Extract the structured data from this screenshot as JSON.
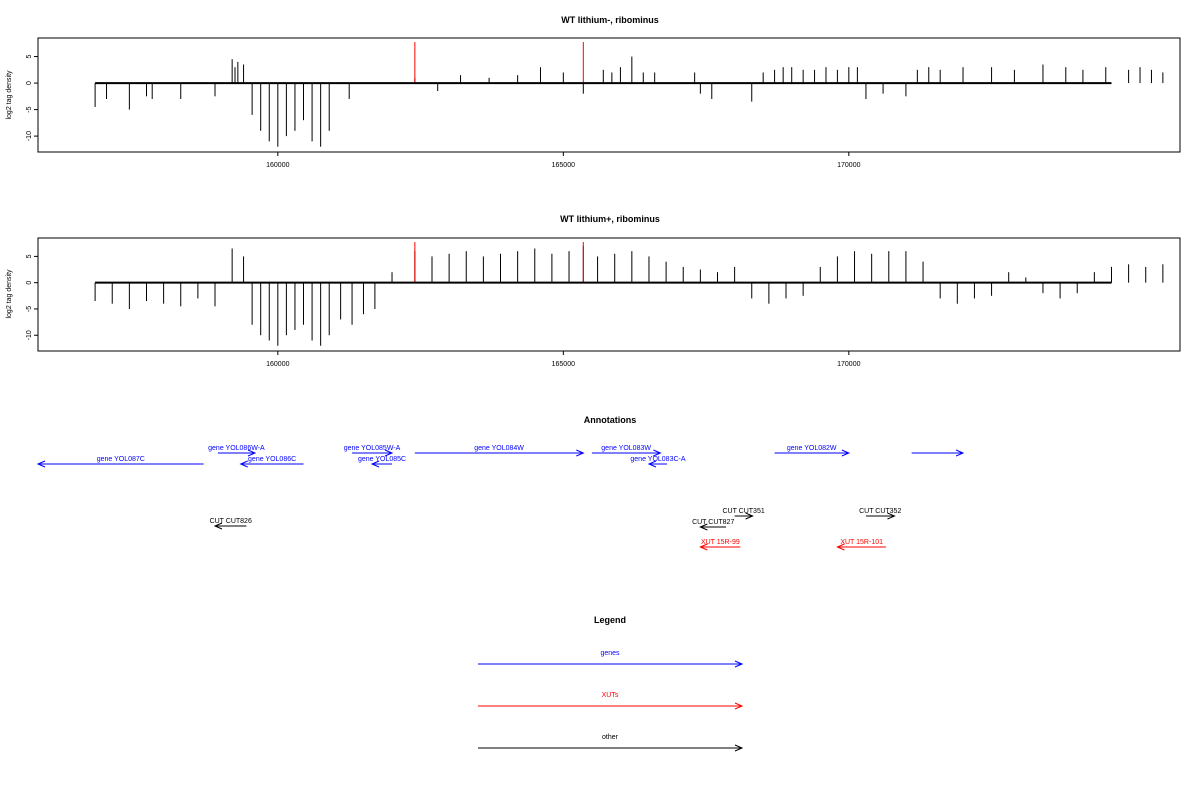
{
  "chart_data": [
    {
      "type": "bar",
      "title": "WT lithium-, ribominus",
      "xlabel": "",
      "ylabel": "log2 tag density",
      "xlim": [
        155800,
        175800
      ],
      "ylim": [
        -13,
        8.5
      ],
      "x_ticks": [
        160000,
        165000,
        170000
      ],
      "x_tick_labels": [
        "160000",
        "165000",
        "170000"
      ],
      "y_ticks": [
        -10,
        -5,
        0,
        5
      ],
      "y_tick_labels": [
        "-10",
        "-5",
        "0",
        "5"
      ],
      "highlights": [
        162400,
        165350
      ],
      "highlight_color": "#ff0000",
      "bar_color": "#000000",
      "x": [
        156800,
        157000,
        157400,
        157700,
        157800,
        158300,
        158900,
        159200,
        159250,
        159300,
        159400,
        159550,
        159700,
        159850,
        160000,
        160150,
        160300,
        160450,
        160600,
        160750,
        160900,
        161250,
        162400,
        162800,
        163200,
        163700,
        164200,
        164600,
        165000,
        165350,
        165700,
        165850,
        166000,
        166200,
        166400,
        166600,
        167300,
        167400,
        167600,
        168300,
        168500,
        168700,
        168850,
        169000,
        169200,
        169400,
        169600,
        169800,
        170000,
        170150,
        170300,
        170600,
        171000,
        171200,
        171400,
        171600,
        172000,
        172500,
        172900,
        173400,
        173800,
        174100,
        174500,
        174900,
        175100,
        175300,
        175500
      ],
      "values": [
        -4.5,
        -3,
        -5,
        -2.5,
        -3,
        -3,
        -2.5,
        4.5,
        3,
        4,
        3.5,
        -6,
        -9,
        -11,
        -12,
        -10,
        -9,
        -7,
        -11,
        -12,
        -9,
        -3,
        1,
        -1.5,
        1.5,
        1,
        1.5,
        3,
        2,
        -2,
        2.5,
        2,
        3,
        5,
        2,
        2,
        2,
        -2,
        -3,
        -3.5,
        2,
        2.5,
        3,
        3,
        2.5,
        2.5,
        3,
        2.5,
        3,
        3,
        -3,
        -2,
        -2.5,
        2.5,
        3,
        2.5,
        3,
        3,
        2.5,
        3.5,
        3,
        2.5,
        3,
        2.5,
        3,
        2.5,
        2
      ]
    },
    {
      "type": "bar",
      "title": "WT lithium+, ribominus",
      "xlabel": "",
      "ylabel": "log2 tag density",
      "xlim": [
        155800,
        175800
      ],
      "ylim": [
        -13,
        8.5
      ],
      "x_ticks": [
        160000,
        165000,
        170000
      ],
      "x_tick_labels": [
        "160000",
        "165000",
        "170000"
      ],
      "y_ticks": [
        -10,
        -5,
        0,
        5
      ],
      "y_tick_labels": [
        "-10",
        "-5",
        "0",
        "5"
      ],
      "highlights": [
        162400,
        165350
      ],
      "highlight_color": "#ff0000",
      "bar_color": "#000000",
      "x": [
        156800,
        157100,
        157400,
        157700,
        158000,
        158300,
        158600,
        158900,
        159200,
        159400,
        159550,
        159700,
        159850,
        160000,
        160150,
        160300,
        160450,
        160600,
        160750,
        160900,
        161100,
        161300,
        161500,
        161700,
        162000,
        162400,
        162700,
        163000,
        163300,
        163600,
        163900,
        164200,
        164500,
        164800,
        165100,
        165350,
        165600,
        165900,
        166200,
        166500,
        166800,
        167100,
        167400,
        167700,
        168000,
        168300,
        168600,
        168900,
        169200,
        169500,
        169800,
        170100,
        170400,
        170700,
        171000,
        171300,
        171600,
        171900,
        172200,
        172500,
        172800,
        173100,
        173400,
        173700,
        174000,
        174300,
        174600,
        174900,
        175200,
        175500
      ],
      "values": [
        -3.5,
        -4,
        -5,
        -3.5,
        -4,
        -4.5,
        -3,
        -4.5,
        6.5,
        5,
        -8,
        -10,
        -11,
        -12,
        -10,
        -9,
        -8,
        -11,
        -12,
        -10,
        -7,
        -8,
        -6,
        -5,
        2,
        6,
        5,
        5.5,
        6,
        5,
        5.5,
        6,
        6.5,
        5.5,
        6,
        7,
        5,
        5.5,
        6,
        5,
        4,
        3,
        2.5,
        2,
        3,
        -3,
        -4,
        -3,
        -2.5,
        3,
        5,
        6,
        5.5,
        6,
        6,
        4,
        -3,
        -4,
        -3,
        -2.5,
        2,
        1,
        -2,
        -3,
        -2,
        2,
        3,
        3.5,
        3,
        3.5
      ]
    }
  ],
  "annotations": {
    "title": "Annotations",
    "xlim": [
      155800,
      175800
    ],
    "features": [
      {
        "label": "gene YOL087C",
        "start": 155800,
        "end": 158700,
        "strand": "-",
        "type": "genes",
        "row": 2
      },
      {
        "label": "gene YOL086W-A",
        "start": 158950,
        "end": 159600,
        "strand": "+",
        "type": "genes",
        "row": 1
      },
      {
        "label": "gene YOL086C",
        "start": 159350,
        "end": 160450,
        "strand": "-",
        "type": "genes",
        "row": 2
      },
      {
        "label": "gene YOL085W-A",
        "start": 161300,
        "end": 162000,
        "strand": "+",
        "type": "genes",
        "row": 1
      },
      {
        "label": "gene YOL085C",
        "start": 161650,
        "end": 162000,
        "strand": "-",
        "type": "genes",
        "row": 2
      },
      {
        "label": "gene YOL084W",
        "start": 162400,
        "end": 165350,
        "strand": "+",
        "type": "genes",
        "row": 1
      },
      {
        "label": "gene YOL083W",
        "start": 165500,
        "end": 166700,
        "strand": "+",
        "type": "genes",
        "row": 1
      },
      {
        "label": "gene YOL083C-A",
        "start": 166500,
        "end": 166700,
        "strand": "-",
        "type": "genes",
        "row": 2
      },
      {
        "label": "gene YOL082W",
        "start": 168700,
        "end": 170000,
        "strand": "+",
        "type": "genes",
        "row": 1
      },
      {
        "label": "",
        "start": 171100,
        "end": 172000,
        "strand": "+",
        "type": "genes",
        "row": 1
      },
      {
        "label": "CUT CUT826",
        "start": 158900,
        "end": 159450,
        "strand": "-",
        "type": "other",
        "row": 3
      },
      {
        "label": "CUT CUT351",
        "start": 168000,
        "end": 168050,
        "strand": "+",
        "type": "other",
        "row": 4
      },
      {
        "label": "CUT CUT827",
        "start": 167400,
        "end": 167850,
        "strand": "-",
        "type": "other",
        "row": 5
      },
      {
        "label": "CUT CUT352",
        "start": 170300,
        "end": 170800,
        "strand": "+",
        "type": "other",
        "row": 4
      },
      {
        "label": "XUT 15R-99",
        "start": 167400,
        "end": 168100,
        "strand": "-",
        "type": "XUTs",
        "row": 6
      },
      {
        "label": "XUT 15R-101",
        "start": 169800,
        "end": 170650,
        "strand": "-",
        "type": "XUTs",
        "row": 6
      }
    ]
  },
  "legend": {
    "title": "Legend",
    "items": [
      {
        "label": "genes",
        "color": "#0000ff"
      },
      {
        "label": "XUTs",
        "color": "#ff0000"
      },
      {
        "label": "other",
        "color": "#000000"
      }
    ]
  },
  "colors": {
    "genes": "#0000ff",
    "XUTs": "#ff0000",
    "other": "#000000",
    "axis": "#000000"
  }
}
